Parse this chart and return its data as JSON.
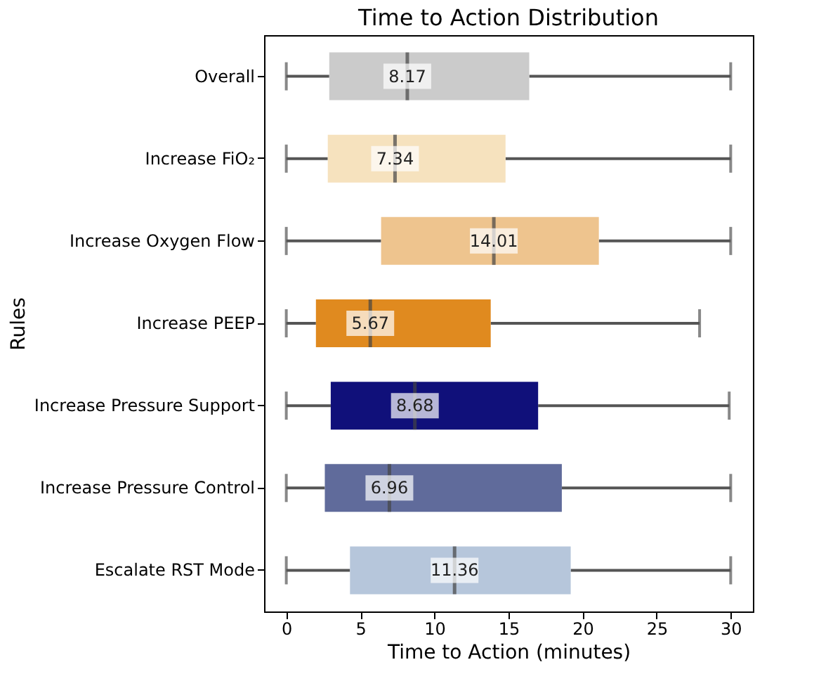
{
  "chart_data": {
    "type": "box",
    "title": "Time to Action Distribution",
    "xlabel": "Time to Action (minutes)",
    "ylabel": "Rules",
    "orientation": "horizontal",
    "categories": [
      "Overall",
      "Increase FiO₂",
      "Increase Oxygen Flow",
      "Increase PEEP",
      "Increase Pressure Support",
      "Increase Pressure Control",
      "Escalate RST Mode"
    ],
    "colors": [
      "#cbcbcb",
      "#f6e2be",
      "#eec48e",
      "#e08a1f",
      "#10107a",
      "#606b9b",
      "#b6c6db"
    ],
    "boxes": [
      {
        "low": 0,
        "q1": 2.9,
        "median": 8.17,
        "q3": 16.4,
        "high": 30
      },
      {
        "low": 0,
        "q1": 2.8,
        "median": 7.34,
        "q3": 14.8,
        "high": 30
      },
      {
        "low": 0,
        "q1": 6.4,
        "median": 14.01,
        "q3": 21.1,
        "high": 30
      },
      {
        "low": 0,
        "q1": 2.0,
        "median": 5.67,
        "q3": 13.8,
        "high": 27.9
      },
      {
        "low": 0,
        "q1": 3.0,
        "median": 8.68,
        "q3": 17.0,
        "high": 29.9
      },
      {
        "low": 0,
        "q1": 2.6,
        "median": 6.96,
        "q3": 18.6,
        "high": 30
      },
      {
        "low": 0,
        "q1": 4.3,
        "median": 11.36,
        "q3": 19.2,
        "high": 30
      }
    ],
    "value_labels": [
      "8.17",
      "7.34",
      "14.01",
      "5.67",
      "8.68",
      "6.96",
      "11.36"
    ],
    "xlim": [
      -1.5,
      31.5
    ],
    "xticks": [
      0,
      5,
      10,
      15,
      20,
      25,
      30
    ],
    "grid": false
  }
}
